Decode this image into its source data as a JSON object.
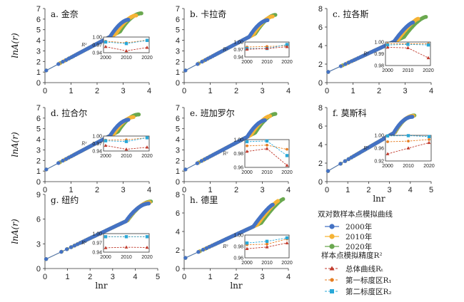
{
  "colors": {
    "s2000": "#4472c4",
    "s2010": "#f5b335",
    "s2020": "#6aa84f",
    "r_total": "#c0392b",
    "r_first": "#e67e22",
    "r_second": "#29a8d8"
  },
  "legend": {
    "title1": "双对数样本点模拟曲线",
    "series": [
      "2000年",
      "2010年",
      "2020年"
    ],
    "title2": "样本点模拟精度R²",
    "r_items": [
      "总体曲线Rₜ",
      "第一标度区R₁",
      "第二标度区R₂"
    ]
  },
  "chart_data": [
    {
      "type": "scatter",
      "label": "a. 金奈",
      "xlabel": "",
      "ylabel": "lnA(r)",
      "xlim": [
        0,
        4
      ],
      "ylim": [
        0,
        7
      ],
      "xticks": [
        0,
        1,
        2,
        3,
        4
      ],
      "yticks": [
        0,
        1,
        2,
        3,
        4,
        5,
        6,
        7
      ],
      "ends": {
        "2000": [
          3.2,
          5.95
        ],
        "2010": [
          3.5,
          6.35
        ],
        "2020": [
          3.7,
          6.55
        ]
      },
      "inset": {
        "ylim": [
          0.94,
          1.0
        ],
        "yticks": [
          "0.94",
          "0.97",
          "1.00"
        ],
        "ylabel": "R²",
        "x": [
          "2000",
          "2010",
          "2020"
        ],
        "total": [
          0.963,
          0.947,
          0.96
        ],
        "first": [
          0.984,
          0.978,
          0.988
        ],
        "second": [
          0.981,
          0.975,
          0.987
        ]
      }
    },
    {
      "type": "scatter",
      "label": "b. 卡拉奇",
      "xlabel": "",
      "ylabel": "",
      "xlim": [
        0,
        4
      ],
      "ylim": [
        0,
        7
      ],
      "xticks": [
        0,
        1,
        2,
        3,
        4
      ],
      "yticks": [
        0,
        1,
        2,
        3,
        4,
        5,
        6,
        7
      ],
      "ends": {
        "2000": [
          3.2,
          5.9
        ],
        "2010": [
          3.4,
          6.25
        ],
        "2020": [
          3.5,
          6.4
        ]
      },
      "inset": {
        "ylim": [
          0.94,
          1.0
        ],
        "yticks": [
          "0.94",
          "0.97",
          "1.00"
        ],
        "ylabel": "R²",
        "x": [
          "2000",
          "2010",
          "2020"
        ],
        "total": [
          0.971,
          0.974,
          0.981
        ],
        "first": [
          0.98,
          0.982,
          0.985
        ],
        "second": [
          0.974,
          0.974,
          0.99
        ]
      }
    },
    {
      "type": "scatter",
      "label": "c. 拉各斯",
      "xlabel": "",
      "ylabel": "",
      "xlim": [
        0,
        4
      ],
      "ylim": [
        0,
        8
      ],
      "xticks": [
        0,
        1,
        2,
        3,
        4
      ],
      "yticks": [
        0,
        2,
        4,
        6,
        8
      ],
      "ends": {
        "2000": [
          3.3,
          6.5
        ],
        "2010": [
          3.5,
          6.9
        ],
        "2020": [
          3.8,
          7.1
        ]
      },
      "inset": {
        "ylim": [
          0.98,
          1.0
        ],
        "yticks": [
          "0.98",
          "0.99",
          "1.00"
        ],
        "ylabel": "R²",
        "x": [
          "2000",
          "2010",
          "2020"
        ],
        "total": [
          0.9955,
          0.995,
          0.9865
        ],
        "first": [
          0.9985,
          0.9985,
          0.9985
        ],
        "second": [
          0.9975,
          0.998,
          0.9975
        ]
      }
    },
    {
      "type": "scatter",
      "label": "d. 拉合尔",
      "xlabel": "",
      "ylabel": "lnA(r)",
      "xlim": [
        0,
        4
      ],
      "ylim": [
        0,
        7
      ],
      "xticks": [
        0,
        1,
        2,
        3,
        4
      ],
      "yticks": [
        0,
        1,
        2,
        3,
        4,
        5,
        6,
        7
      ],
      "ends": {
        "2000": [
          3.2,
          5.85
        ],
        "2010": [
          3.4,
          6.1
        ],
        "2020": [
          3.6,
          6.35
        ]
      },
      "inset": {
        "ylim": [
          0.94,
          1.0
        ],
        "yticks": [
          "0.94",
          "0.97",
          "1.00"
        ],
        "ylabel": "R²",
        "x": [
          "2000",
          "2010",
          "2020"
        ],
        "total": [
          0.962,
          0.947,
          0.955
        ],
        "first": [
          0.984,
          0.985,
          0.993
        ],
        "second": [
          0.981,
          0.978,
          0.993
        ]
      }
    },
    {
      "type": "scatter",
      "label": "e. 班加罗尔",
      "xlabel": "",
      "ylabel": "",
      "xlim": [
        0,
        4
      ],
      "ylim": [
        0,
        7
      ],
      "xticks": [
        0,
        1,
        2,
        3,
        4
      ],
      "yticks": [
        0,
        1,
        2,
        3,
        4,
        5,
        6,
        7
      ],
      "ends": {
        "2000": [
          3.1,
          5.8
        ],
        "2010": [
          3.3,
          6.2
        ],
        "2020": [
          3.5,
          6.4
        ]
      },
      "inset": {
        "ylim": [
          0.96,
          1.0
        ],
        "yticks": [
          "0.96",
          "0.98",
          "1.00"
        ],
        "ylabel": "R²",
        "x": [
          "2000",
          "2010",
          "2020"
        ],
        "total": [
          0.983,
          0.987,
          0.963
        ],
        "first": [
          0.991,
          0.992,
          0.986
        ],
        "second": [
          0.997,
          0.998,
          0.977
        ]
      }
    },
    {
      "type": "scatter",
      "label": "f. 莫斯科",
      "xlabel": "lnr",
      "ylabel": "",
      "xlim": [
        0,
        5
      ],
      "ylim": [
        0,
        8
      ],
      "xticks": [
        0,
        1,
        2,
        3,
        4,
        5
      ],
      "yticks": [
        0,
        2,
        4,
        6,
        8
      ],
      "ends": {
        "2000": [
          4.1,
          7.0
        ],
        "2010": [
          4.15,
          7.1
        ],
        "2020": [
          4.2,
          7.15
        ]
      },
      "inset": {
        "ylim": [
          0.92,
          1.0
        ],
        "yticks": [
          "0.92",
          "0.96",
          "1.00"
        ],
        "ylabel": "R²",
        "x": [
          "2000",
          "2010",
          "2020"
        ],
        "total": [
          0.942,
          0.96,
          0.977
        ],
        "first": [
          0.98,
          0.982,
          0.987
        ],
        "second": [
          0.998,
          0.999,
          0.996
        ]
      }
    },
    {
      "type": "scatter",
      "label": "g. 纽约",
      "xlabel": "lnr",
      "ylabel": "lnA(r)",
      "xlim": [
        0,
        5
      ],
      "ylim": [
        0,
        9
      ],
      "xticks": [
        0,
        1,
        2,
        3,
        4,
        5
      ],
      "yticks": [
        0,
        3,
        6,
        9
      ],
      "ends": {
        "2000": [
          4.6,
          7.9
        ],
        "2010": [
          4.65,
          8.05
        ],
        "2020": [
          4.7,
          8.15
        ]
      },
      "inset": {
        "ylim": [
          0.94,
          1.0
        ],
        "yticks": [
          "0.94",
          "0.97",
          "1.00"
        ],
        "ylabel": "R²",
        "x": [
          "2000",
          "2010",
          "2020"
        ],
        "total": [
          0.954,
          0.956,
          0.955
        ],
        "first": [
          0.99,
          0.99,
          0.99
        ],
        "second": [
          0.99,
          0.99,
          0.99
        ]
      }
    },
    {
      "type": "scatter",
      "label": "h. 德里",
      "xlabel": "lnr",
      "ylabel": "",
      "xlim": [
        0,
        4
      ],
      "ylim": [
        0,
        8
      ],
      "xticks": [
        0,
        1,
        2,
        3,
        4
      ],
      "yticks": [
        0,
        2,
        4,
        6,
        8
      ],
      "ends": {
        "2000": [
          3.4,
          6.9
        ],
        "2010": [
          3.6,
          7.3
        ],
        "2020": [
          3.8,
          7.5
        ]
      },
      "inset": {
        "ylim": [
          0.96,
          1.0
        ],
        "yticks": [
          "0.96",
          "0.98",
          "1.00"
        ],
        "ylabel": "R²",
        "x": [
          "2000",
          "2010",
          "2020"
        ],
        "total": [
          0.976,
          0.979,
          0.986
        ],
        "first": [
          0.983,
          0.984,
          0.993
        ],
        "second": [
          0.986,
          0.989,
          0.995
        ]
      }
    }
  ]
}
